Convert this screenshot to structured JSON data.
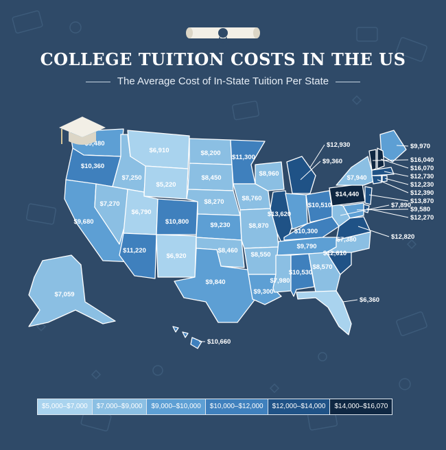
{
  "header": {
    "title": "COLLEGE TUITION COSTS IN THE US",
    "subtitle": "The Average Cost of In-State Tuition Per State"
  },
  "colors": {
    "background": "#2f4a68",
    "tier1": "#a9d3ee",
    "tier2": "#8bbfe3",
    "tier3": "#5d9fd4",
    "tier4": "#3f80bd",
    "tier5": "#1f5286",
    "tier6": "#0f2742"
  },
  "legend": [
    {
      "label": "$5,000–$7,000",
      "color": "#a9d3ee"
    },
    {
      "label": "$7,000–$9,000",
      "color": "#8bbfe3"
    },
    {
      "label": "$9,000–$10,000",
      "color": "#5d9fd4"
    },
    {
      "label": "$10,000–$12,000",
      "color": "#3f80bd"
    },
    {
      "label": "$12,000–$14,000",
      "color": "#1f5286"
    },
    {
      "label": "$14,000–$16,070",
      "color": "#0f2742"
    }
  ],
  "states": [
    {
      "code": "WA",
      "value": "$9,480",
      "tier": 3
    },
    {
      "code": "OR",
      "value": "$10,360",
      "tier": 4
    },
    {
      "code": "CA",
      "value": "$9,680",
      "tier": 3
    },
    {
      "code": "NV",
      "value": "$7,270",
      "tier": 2
    },
    {
      "code": "ID",
      "value": "$7,250",
      "tier": 2
    },
    {
      "code": "MT",
      "value": "$6,910",
      "tier": 1
    },
    {
      "code": "WY",
      "value": "$5,220",
      "tier": 1
    },
    {
      "code": "UT",
      "value": "$6,790",
      "tier": 1
    },
    {
      "code": "AZ",
      "value": "$11,220",
      "tier": 4
    },
    {
      "code": "CO",
      "value": "$10,800",
      "tier": 4
    },
    {
      "code": "NM",
      "value": "$6,920",
      "tier": 1
    },
    {
      "code": "ND",
      "value": "$8,200",
      "tier": 2
    },
    {
      "code": "SD",
      "value": "$8,450",
      "tier": 2
    },
    {
      "code": "NE",
      "value": "$8,270",
      "tier": 2
    },
    {
      "code": "KS",
      "value": "$9,230",
      "tier": 3
    },
    {
      "code": "OK",
      "value": "$8,460",
      "tier": 2
    },
    {
      "code": "TX",
      "value": "$9,840",
      "tier": 3
    },
    {
      "code": "MN",
      "value": "$11,300",
      "tier": 4
    },
    {
      "code": "IA",
      "value": "$8,760",
      "tier": 2
    },
    {
      "code": "MO",
      "value": "$8,870",
      "tier": 2
    },
    {
      "code": "AR",
      "value": "$8,550",
      "tier": 2
    },
    {
      "code": "LA",
      "value": "$9,300",
      "tier": 3
    },
    {
      "code": "WI",
      "value": "$8,960",
      "tier": 2
    },
    {
      "code": "IL",
      "value": "$13,620",
      "tier": 5
    },
    {
      "code": "MI",
      "value": "$12,930",
      "tier": 5
    },
    {
      "code": "IN",
      "value": "$9,360",
      "tier": 3
    },
    {
      "code": "OH",
      "value": "$10,510",
      "tier": 4
    },
    {
      "code": "KY",
      "value": "$10,300",
      "tier": 4
    },
    {
      "code": "TN",
      "value": "$9,790",
      "tier": 3
    },
    {
      "code": "MS",
      "value": "$7,980",
      "tier": 2
    },
    {
      "code": "AL",
      "value": "$10,530",
      "tier": 4
    },
    {
      "code": "GA",
      "value": "$8,570",
      "tier": 2
    },
    {
      "code": "FL",
      "value": "$6,360",
      "tier": 1
    },
    {
      "code": "SC",
      "value": "$12,610",
      "tier": 5
    },
    {
      "code": "NC",
      "value": "$7,380",
      "tier": 2
    },
    {
      "code": "VA",
      "value": "$12,820",
      "tier": 5
    },
    {
      "code": "WV",
      "value": "$7,890",
      "tier": 2
    },
    {
      "code": "PA",
      "value": "$14,440",
      "tier": 6
    },
    {
      "code": "NY",
      "value": "$7,940",
      "tier": 2
    },
    {
      "code": "ME",
      "value": "$9,970",
      "tier": 3
    },
    {
      "code": "NH",
      "value": "$16,070",
      "tier": 6
    },
    {
      "code": "VT",
      "value": "$16,040",
      "tier": 6
    },
    {
      "code": "MA",
      "value": "$12,730",
      "tier": 5
    },
    {
      "code": "RI",
      "value": "$12,230",
      "tier": 5
    },
    {
      "code": "CT",
      "value": "$12,390",
      "tier": 5
    },
    {
      "code": "NJ",
      "value": "$13,870",
      "tier": 5
    },
    {
      "code": "DE",
      "value": "$12,270",
      "tier": 5
    },
    {
      "code": "MD",
      "value": "$9,580",
      "tier": 3
    },
    {
      "code": "AK",
      "value": "$7,059",
      "tier": 2
    },
    {
      "code": "HI",
      "value": "$10,660",
      "tier": 4
    }
  ]
}
